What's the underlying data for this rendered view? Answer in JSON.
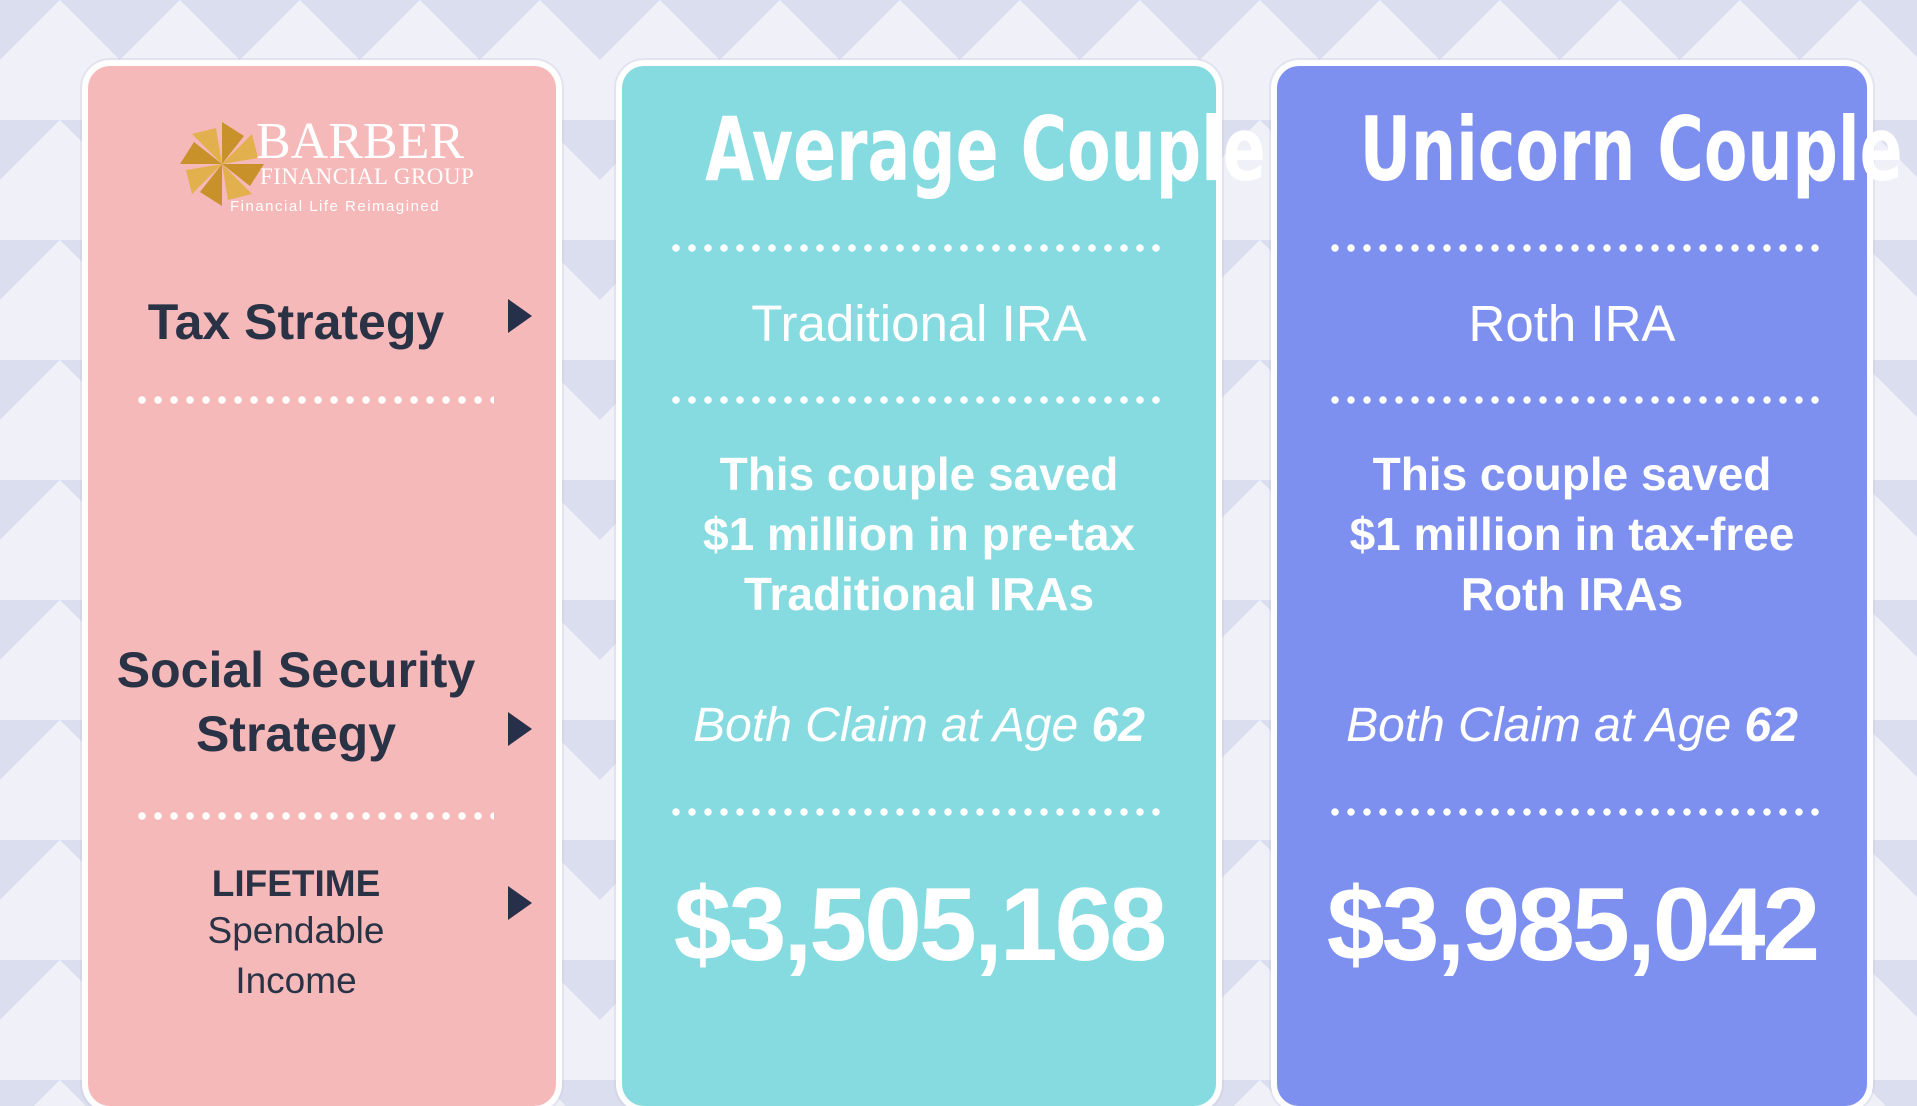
{
  "colors": {
    "left_card": "#f6b9b9",
    "average_card": "#86dbe0",
    "unicorn_card": "#7e90ef",
    "label_text": "#2a3346",
    "logo_gold": "#c8912a"
  },
  "logo": {
    "name": "BARBER",
    "subtitle": "FINANCIAL GROUP",
    "tagline": "Financial Life Reimagined",
    "icon": "pinwheel-logo-icon"
  },
  "rows": {
    "tax_strategy": "Tax Strategy",
    "social_security_line1": "Social Security",
    "social_security_line2": "Strategy",
    "lifetime_line1": "LIFETIME",
    "lifetime_line2": "Spendable",
    "lifetime_line3": "Income",
    "arrow_icon": "triangle-right-icon"
  },
  "columns": [
    {
      "title": "Average Couple",
      "strategy": "Traditional IRA",
      "description": [
        "This couple saved",
        "$1 million in pre-tax",
        "Traditional IRAs"
      ],
      "claim_text": "Both Claim at Age ",
      "claim_age": "62",
      "amount": "$3,505,168"
    },
    {
      "title": "Unicorn Couple",
      "strategy": "Roth IRA",
      "description": [
        "This couple saved",
        "$1 million in tax-free",
        "Roth IRAs"
      ],
      "claim_text": "Both Claim at Age ",
      "claim_age": "62",
      "amount": "$3,985,042"
    }
  ]
}
